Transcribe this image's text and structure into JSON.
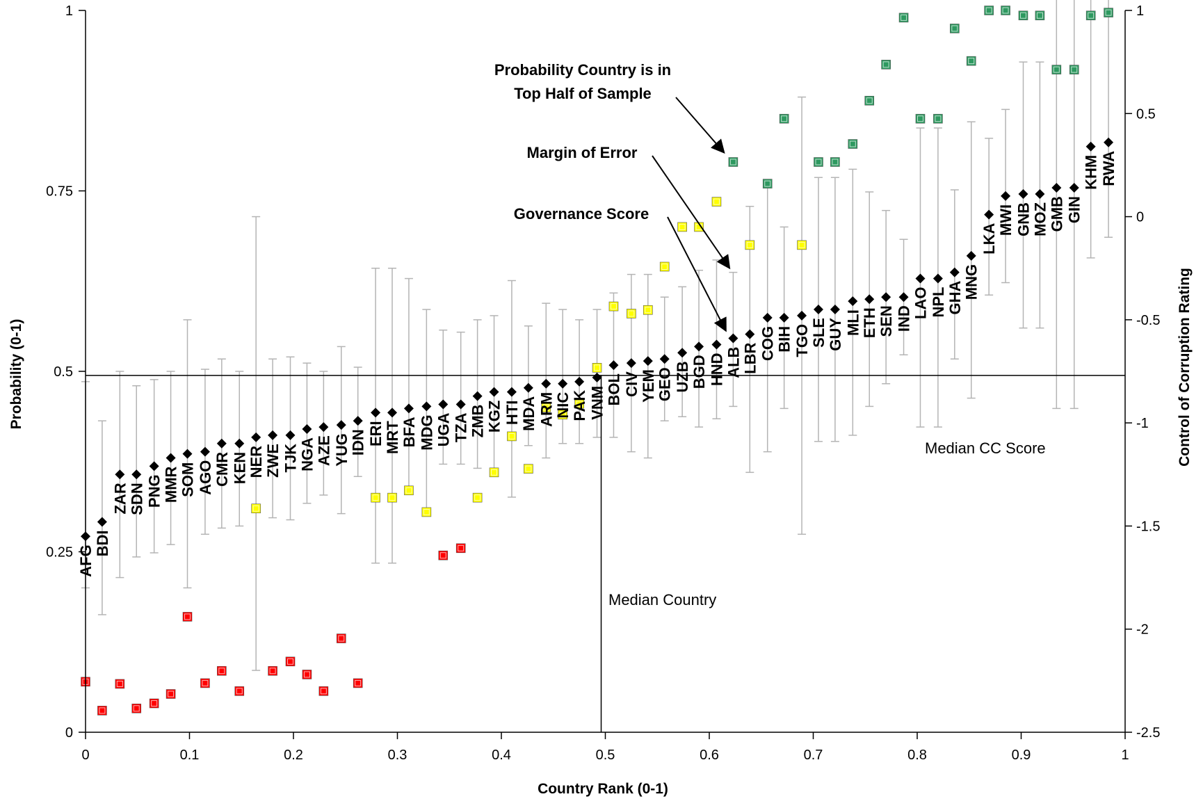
{
  "chart_data": {
    "type": "scatter",
    "xlabel": "Country Rank (0-1)",
    "ylabel": "Probability (0-1)",
    "y2label": "Control of Corruption Rating",
    "xlim": [
      0,
      1
    ],
    "ylim": [
      0,
      1
    ],
    "y2lim": [
      -2.5,
      1
    ],
    "x_ticks": [
      0,
      0.1,
      0.2,
      0.3,
      0.4,
      0.5,
      0.6,
      0.7,
      0.8,
      0.9,
      1
    ],
    "y_ticks": [
      0,
      0.25,
      0.5,
      0.75,
      1
    ],
    "y2_ticks": [
      -2.5,
      -2,
      -1.5,
      -1,
      -0.5,
      0,
      0.5,
      1
    ],
    "x_tick_labels": [
      "0",
      "0.1",
      "0.2",
      "0.3",
      "0.4",
      "0.5",
      "0.6",
      "0.7",
      "0.8",
      "0.9",
      "1"
    ],
    "y_tick_labels": [
      "0",
      "0.25",
      "0.5",
      "0.75",
      "1"
    ],
    "y2_tick_labels": [
      "-2.5",
      "-2",
      "-1.5",
      "-1",
      "-0.5",
      "0",
      "0.5",
      "1"
    ],
    "grid": false,
    "reference_lines": {
      "median_cc_score_y2": -0.77,
      "median_country_x": 0.496,
      "median_cc_label": "Median CC Score",
      "median_country_label": "Median Country"
    },
    "annotations": {
      "probability_line1": "Probability Country is in",
      "probability_line2": "Top Half of Sample",
      "margin_of_error": "Margin of Error",
      "governance_score": "Governance Score"
    },
    "colors": {
      "governance_marker": "#000000",
      "error_bar": "#b4b4b4",
      "prob_low": "#ff0000",
      "prob_mid": "#ffff00",
      "prob_high": "#2e9960"
    },
    "countries": [
      {
        "code": "AFG",
        "x": 0.0,
        "score": -1.55,
        "lo": -1.8,
        "hi": -0.8,
        "prob": 0.07
      },
      {
        "code": "BDI",
        "x": 0.016,
        "score": -1.48,
        "lo": -1.93,
        "hi": -0.99,
        "prob": 0.03
      },
      {
        "code": "ZAR",
        "x": 0.033,
        "score": -1.25,
        "lo": -1.75,
        "hi": -0.75,
        "prob": 0.067
      },
      {
        "code": "SDN",
        "x": 0.049,
        "score": -1.25,
        "lo": -1.65,
        "hi": -0.82,
        "prob": 0.033
      },
      {
        "code": "PNG",
        "x": 0.066,
        "score": -1.21,
        "lo": -1.63,
        "hi": -0.79,
        "prob": 0.04
      },
      {
        "code": "MMR",
        "x": 0.082,
        "score": -1.17,
        "lo": -1.59,
        "hi": -0.75,
        "prob": 0.053
      },
      {
        "code": "SOM",
        "x": 0.098,
        "score": -1.15,
        "lo": -1.8,
        "hi": -0.5,
        "prob": 0.16
      },
      {
        "code": "AGO",
        "x": 0.115,
        "score": -1.14,
        "lo": -1.54,
        "hi": -0.74,
        "prob": 0.068
      },
      {
        "code": "CMR",
        "x": 0.131,
        "score": -1.1,
        "lo": -1.51,
        "hi": -0.69,
        "prob": 0.085
      },
      {
        "code": "KEN",
        "x": 0.148,
        "score": -1.1,
        "lo": -1.5,
        "hi": -0.75,
        "prob": 0.057
      },
      {
        "code": "NER",
        "x": 0.164,
        "score": -1.07,
        "lo": -2.2,
        "hi": 0.0,
        "prob": 0.31
      },
      {
        "code": "ZWE",
        "x": 0.18,
        "score": -1.06,
        "lo": -1.46,
        "hi": -0.69,
        "prob": 0.085
      },
      {
        "code": "TJK",
        "x": 0.197,
        "score": -1.06,
        "lo": -1.47,
        "hi": -0.68,
        "prob": 0.098
      },
      {
        "code": "NGA",
        "x": 0.213,
        "score": -1.03,
        "lo": -1.39,
        "hi": -0.71,
        "prob": 0.08
      },
      {
        "code": "AZE",
        "x": 0.229,
        "score": -1.02,
        "lo": -1.35,
        "hi": -0.75,
        "prob": 0.057
      },
      {
        "code": "YUG",
        "x": 0.246,
        "score": -1.01,
        "lo": -1.44,
        "hi": -0.63,
        "prob": 0.13
      },
      {
        "code": "IDN",
        "x": 0.262,
        "score": -0.99,
        "lo": -1.26,
        "hi": -0.73,
        "prob": 0.068
      },
      {
        "code": "ERI",
        "x": 0.279,
        "score": -0.95,
        "lo": -1.68,
        "hi": -0.25,
        "prob": 0.325
      },
      {
        "code": "MRT",
        "x": 0.295,
        "score": -0.95,
        "lo": -1.68,
        "hi": -0.25,
        "prob": 0.325
      },
      {
        "code": "BFA",
        "x": 0.311,
        "score": -0.93,
        "lo": -1.33,
        "hi": -0.3,
        "prob": 0.335
      },
      {
        "code": "MDG",
        "x": 0.328,
        "score": -0.92,
        "lo": -1.42,
        "hi": -0.45,
        "prob": 0.305
      },
      {
        "code": "UGA",
        "x": 0.344,
        "score": -0.91,
        "lo": -1.2,
        "hi": -0.55,
        "prob": 0.245
      },
      {
        "code": "TZA",
        "x": 0.361,
        "score": -0.91,
        "lo": -1.2,
        "hi": -0.56,
        "prob": 0.255
      },
      {
        "code": "ZMB",
        "x": 0.377,
        "score": -0.87,
        "lo": -1.22,
        "hi": -0.5,
        "prob": 0.325
      },
      {
        "code": "KGZ",
        "x": 0.393,
        "score": -0.85,
        "lo": -1.23,
        "hi": -0.48,
        "prob": 0.36
      },
      {
        "code": "HTI",
        "x": 0.41,
        "score": -0.85,
        "lo": -1.36,
        "hi": -0.31,
        "prob": 0.41
      },
      {
        "code": "MDA",
        "x": 0.426,
        "score": -0.83,
        "lo": -1.11,
        "hi": -0.53,
        "prob": 0.365
      },
      {
        "code": "ARM",
        "x": 0.443,
        "score": -0.81,
        "lo": -1.17,
        "hi": -0.42,
        "prob": 0.45
      },
      {
        "code": "NIC",
        "x": 0.459,
        "score": -0.81,
        "lo": -1.1,
        "hi": -0.45,
        "prob": 0.44
      },
      {
        "code": "PAK",
        "x": 0.475,
        "score": -0.8,
        "lo": -1.1,
        "hi": -0.5,
        "prob": 0.455
      },
      {
        "code": "VNM",
        "x": 0.492,
        "score": -0.78,
        "lo": -1.07,
        "hi": -0.45,
        "prob": 0.505
      },
      {
        "code": "BOL",
        "x": 0.508,
        "score": -0.72,
        "lo": -1.07,
        "hi": -0.37,
        "prob": 0.59
      },
      {
        "code": "CIV",
        "x": 0.525,
        "score": -0.71,
        "lo": -1.14,
        "hi": -0.28,
        "prob": 0.58
      },
      {
        "code": "YEM",
        "x": 0.541,
        "score": -0.7,
        "lo": -1.17,
        "hi": -0.28,
        "prob": 0.585
      },
      {
        "code": "GEO",
        "x": 0.557,
        "score": -0.69,
        "lo": -0.99,
        "hi": -0.39,
        "prob": 0.645
      },
      {
        "code": "UZB",
        "x": 0.574,
        "score": -0.66,
        "lo": -0.97,
        "hi": -0.34,
        "prob": 0.7
      },
      {
        "code": "BGD",
        "x": 0.59,
        "score": -0.63,
        "lo": -1.02,
        "hi": -0.26,
        "prob": 0.7
      },
      {
        "code": "HND",
        "x": 0.607,
        "score": -0.62,
        "lo": -0.98,
        "hi": -0.21,
        "prob": 0.735
      },
      {
        "code": "ALB",
        "x": 0.623,
        "score": -0.59,
        "lo": -0.92,
        "hi": -0.27,
        "prob": 0.79
      },
      {
        "code": "LBR",
        "x": 0.639,
        "score": -0.57,
        "lo": -1.24,
        "hi": 0.05,
        "prob": 0.675
      },
      {
        "code": "COG",
        "x": 0.656,
        "score": -0.49,
        "lo": -1.14,
        "hi": 0.16,
        "prob": 0.76
      },
      {
        "code": "BIH",
        "x": 0.672,
        "score": -0.49,
        "lo": -0.93,
        "hi": -0.05,
        "prob": 0.85
      },
      {
        "code": "TGO",
        "x": 0.689,
        "score": -0.48,
        "lo": -1.54,
        "hi": 0.58,
        "prob": 0.675
      },
      {
        "code": "SLE",
        "x": 0.705,
        "score": -0.45,
        "lo": -1.09,
        "hi": 0.19,
        "prob": 0.79
      },
      {
        "code": "GUY",
        "x": 0.721,
        "score": -0.45,
        "lo": -1.09,
        "hi": 0.19,
        "prob": 0.79
      },
      {
        "code": "MLI",
        "x": 0.738,
        "score": -0.41,
        "lo": -1.06,
        "hi": 0.23,
        "prob": 0.815
      },
      {
        "code": "ETH",
        "x": 0.754,
        "score": -0.4,
        "lo": -0.92,
        "hi": 0.12,
        "prob": 0.875
      },
      {
        "code": "SEN",
        "x": 0.77,
        "score": -0.39,
        "lo": -0.81,
        "hi": 0.03,
        "prob": 0.925
      },
      {
        "code": "IND",
        "x": 0.787,
        "score": -0.39,
        "lo": -0.67,
        "hi": -0.11,
        "prob": 0.99
      },
      {
        "code": "LAO",
        "x": 0.803,
        "score": -0.3,
        "lo": -1.02,
        "hi": 0.43,
        "prob": 0.85
      },
      {
        "code": "NPL",
        "x": 0.82,
        "score": -0.3,
        "lo": -1.02,
        "hi": 0.43,
        "prob": 0.85
      },
      {
        "code": "GHA",
        "x": 0.836,
        "score": -0.27,
        "lo": -0.69,
        "hi": 0.13,
        "prob": 0.975
      },
      {
        "code": "MNG",
        "x": 0.852,
        "score": -0.19,
        "lo": -0.88,
        "hi": 0.46,
        "prob": 0.93
      },
      {
        "code": "LKA",
        "x": 0.869,
        "score": 0.01,
        "lo": -0.38,
        "hi": 0.38,
        "prob": 1.0
      },
      {
        "code": "MWI",
        "x": 0.885,
        "score": 0.1,
        "lo": -0.32,
        "hi": 0.52,
        "prob": 1.0
      },
      {
        "code": "GNB",
        "x": 0.902,
        "score": 0.11,
        "lo": -0.54,
        "hi": 0.75,
        "prob": 0.993
      },
      {
        "code": "MOZ",
        "x": 0.918,
        "score": 0.11,
        "lo": -0.54,
        "hi": 0.75,
        "prob": 0.993
      },
      {
        "code": "GMB",
        "x": 0.934,
        "score": 0.14,
        "lo": -0.93,
        "hi": 1.1,
        "prob": 0.918
      },
      {
        "code": "GIN",
        "x": 0.951,
        "score": 0.14,
        "lo": -0.93,
        "hi": 1.1,
        "prob": 0.918
      },
      {
        "code": "KHM",
        "x": 0.967,
        "score": 0.34,
        "lo": -0.2,
        "hi": 1.1,
        "prob": 0.993
      },
      {
        "code": "RWA",
        "x": 0.984,
        "score": 0.36,
        "lo": -0.1,
        "hi": 1.1,
        "prob": 0.997
      }
    ]
  }
}
